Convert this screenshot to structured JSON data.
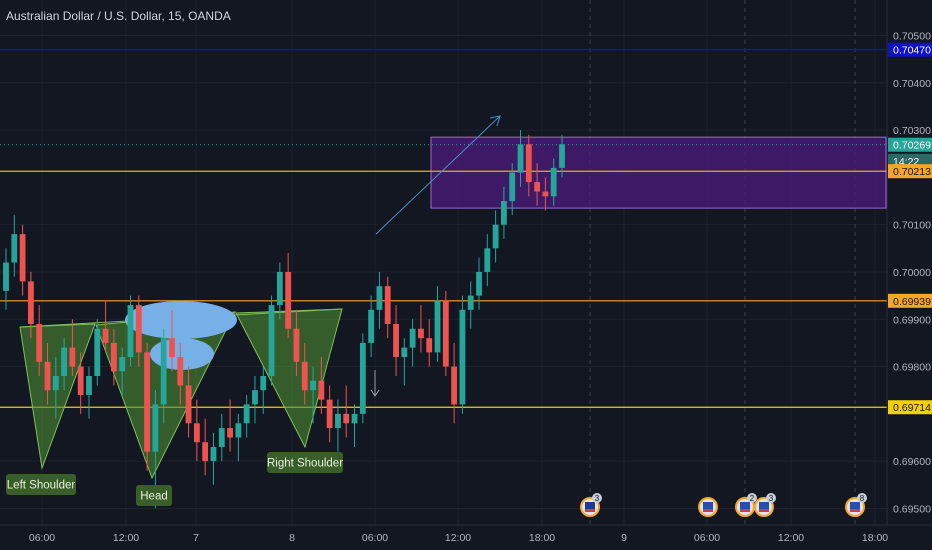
{
  "title": "Australian Dollar / U.S. Dollar, 15, OANDA",
  "chart_data": {
    "type": "candlestick",
    "y_ticks": [
      0.705,
      0.704,
      0.703,
      0.701,
      0.7,
      0.699,
      0.698,
      0.696,
      0.695
    ],
    "y_tick_labels": [
      "0.70500",
      "0.70400",
      "0.70300",
      "0.70100",
      "0.70000",
      "0.69900",
      "0.69800",
      "0.69600",
      "0.69500"
    ],
    "y_range": [
      0.69465,
      0.70575
    ],
    "x_ticks": [
      "06:00",
      "12:00",
      "7",
      "8",
      "06:00",
      "12:00",
      "18:00",
      "9",
      "06:00",
      "12:00",
      "18:00"
    ],
    "price_labels": [
      {
        "text": "0.70470",
        "value": 0.7047,
        "color": "#1010c8"
      },
      {
        "text": "0.70269",
        "value": 0.70269,
        "color": "#26a69a"
      },
      {
        "text": "14:22",
        "value": 0.70235,
        "color": "#2a6a62"
      },
      {
        "text": "0.70213",
        "value": 0.70213,
        "color": "#f5a623"
      },
      {
        "text": "0.69939",
        "value": 0.69939,
        "color": "#f5a623"
      },
      {
        "text": "0.69714",
        "value": 0.69714,
        "color": "#f5d000"
      }
    ],
    "horizontal_lines": [
      {
        "value": 0.7047,
        "color": "#1010c8"
      },
      {
        "value": 0.70213,
        "color": "#f5a623"
      },
      {
        "value": 0.69939,
        "color": "#f5a623"
      },
      {
        "value": 0.69714,
        "color": "#f5d000"
      }
    ],
    "zone": {
      "top": 0.70285,
      "bottom": 0.70135
    },
    "annotations": [
      "Left Shoulder",
      "Head",
      "Right Shoulder"
    ],
    "event_markers": [
      "3",
      "2",
      "3",
      "8"
    ],
    "candles": [
      [
        0.6996,
        0.7005,
        0.6992,
        0.7002
      ],
      [
        0.7002,
        0.7012,
        0.6999,
        0.7008
      ],
      [
        0.7008,
        0.701,
        0.6995,
        0.6998
      ],
      [
        0.6998,
        0.7,
        0.6986,
        0.6989
      ],
      [
        0.6989,
        0.6993,
        0.6978,
        0.6981
      ],
      [
        0.6981,
        0.6985,
        0.6972,
        0.6975
      ],
      [
        0.6975,
        0.6982,
        0.6969,
        0.6978
      ],
      [
        0.6978,
        0.6986,
        0.6975,
        0.6984
      ],
      [
        0.6984,
        0.699,
        0.6978,
        0.698
      ],
      [
        0.698,
        0.6983,
        0.697,
        0.6974
      ],
      [
        0.6974,
        0.698,
        0.6969,
        0.6978
      ],
      [
        0.6978,
        0.699,
        0.6976,
        0.6988
      ],
      [
        0.6988,
        0.6994,
        0.6983,
        0.6985
      ],
      [
        0.6985,
        0.6988,
        0.6976,
        0.6979
      ],
      [
        0.6979,
        0.6984,
        0.6974,
        0.6982
      ],
      [
        0.6982,
        0.6995,
        0.698,
        0.6993
      ],
      [
        0.6993,
        0.6995,
        0.698,
        0.6983
      ],
      [
        0.6983,
        0.6985,
        0.6958,
        0.6962
      ],
      [
        0.6962,
        0.6975,
        0.695,
        0.6972
      ],
      [
        0.6972,
        0.6988,
        0.6968,
        0.6986
      ],
      [
        0.6986,
        0.6992,
        0.6979,
        0.6982
      ],
      [
        0.6982,
        0.6985,
        0.6972,
        0.6976
      ],
      [
        0.6976,
        0.698,
        0.6965,
        0.6968
      ],
      [
        0.6968,
        0.6973,
        0.696,
        0.6964
      ],
      [
        0.6964,
        0.6969,
        0.6957,
        0.696
      ],
      [
        0.696,
        0.6966,
        0.6955,
        0.6963
      ],
      [
        0.6963,
        0.697,
        0.696,
        0.6967
      ],
      [
        0.6967,
        0.6973,
        0.6962,
        0.6965
      ],
      [
        0.6965,
        0.697,
        0.696,
        0.6968
      ],
      [
        0.6968,
        0.6974,
        0.6965,
        0.6972
      ],
      [
        0.6972,
        0.6978,
        0.6968,
        0.6975
      ],
      [
        0.6975,
        0.698,
        0.697,
        0.6978
      ],
      [
        0.6978,
        0.6995,
        0.6976,
        0.6993
      ],
      [
        0.6993,
        0.7002,
        0.699,
        0.7
      ],
      [
        0.7,
        0.7004,
        0.6986,
        0.6988
      ],
      [
        0.6988,
        0.6992,
        0.6978,
        0.6981
      ],
      [
        0.6981,
        0.6985,
        0.6972,
        0.6975
      ],
      [
        0.6975,
        0.698,
        0.6968,
        0.6977
      ],
      [
        0.6977,
        0.6982,
        0.697,
        0.6973
      ],
      [
        0.6973,
        0.6976,
        0.6964,
        0.6967
      ],
      [
        0.6967,
        0.6973,
        0.6962,
        0.697
      ],
      [
        0.697,
        0.6976,
        0.6965,
        0.6968
      ],
      [
        0.6968,
        0.6972,
        0.6963,
        0.697
      ],
      [
        0.697,
        0.6987,
        0.6968,
        0.6985
      ],
      [
        0.6985,
        0.6995,
        0.6982,
        0.6992
      ],
      [
        0.6992,
        0.7,
        0.6988,
        0.6997
      ],
      [
        0.6997,
        0.6999,
        0.6986,
        0.6989
      ],
      [
        0.6989,
        0.6993,
        0.6978,
        0.6982
      ],
      [
        0.6982,
        0.6986,
        0.6976,
        0.6984
      ],
      [
        0.6984,
        0.699,
        0.698,
        0.6988
      ],
      [
        0.6988,
        0.6993,
        0.6983,
        0.6986
      ],
      [
        0.6986,
        0.699,
        0.698,
        0.6983
      ],
      [
        0.6983,
        0.6997,
        0.6981,
        0.6994
      ],
      [
        0.6994,
        0.6996,
        0.6978,
        0.698
      ],
      [
        0.698,
        0.6985,
        0.6968,
        0.6972
      ],
      [
        0.6972,
        0.6995,
        0.697,
        0.6992
      ],
      [
        0.6992,
        0.6998,
        0.6988,
        0.6995
      ],
      [
        0.6995,
        0.7003,
        0.6992,
        0.7
      ],
      [
        0.7,
        0.7008,
        0.6997,
        0.7005
      ],
      [
        0.7005,
        0.7013,
        0.7002,
        0.701
      ],
      [
        0.701,
        0.7018,
        0.7007,
        0.7015
      ],
      [
        0.7015,
        0.7023,
        0.7012,
        0.7021
      ],
      [
        0.7021,
        0.703,
        0.7018,
        0.7027
      ],
      [
        0.7027,
        0.7029,
        0.7016,
        0.7019
      ],
      [
        0.7019,
        0.7023,
        0.7014,
        0.7017
      ],
      [
        0.7017,
        0.702,
        0.7013,
        0.7016
      ],
      [
        0.7016,
        0.7024,
        0.7014,
        0.7022
      ],
      [
        0.7022,
        0.7029,
        0.702,
        0.7027
      ]
    ]
  }
}
